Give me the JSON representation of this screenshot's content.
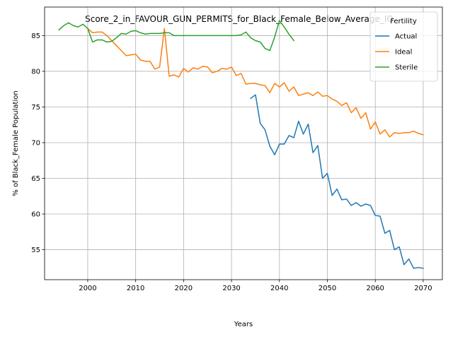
{
  "chart_data": {
    "type": "line",
    "title": "Score_2_in_FAVOUR_GUN_PERMITS_for_Black_Female_Below_Average_IQ",
    "xlabel": "Years",
    "ylabel": "% of Black_Female Population",
    "xlim": [
      1991,
      2074
    ],
    "ylim": [
      50.8,
      89.0
    ],
    "xticks": [
      2000,
      2010,
      2020,
      2030,
      2040,
      2050,
      2060,
      2070
    ],
    "yticks": [
      55,
      60,
      65,
      70,
      75,
      80,
      85
    ],
    "grid": true,
    "legend": {
      "title": "Fertility",
      "position": "top-right"
    },
    "series": [
      {
        "name": "Actual",
        "color": "#1f77b4",
        "x": [
          2034,
          2035,
          2036,
          2037,
          2038,
          2039,
          2040,
          2041,
          2042,
          2043,
          2044,
          2045,
          2046,
          2047,
          2048,
          2049,
          2050,
          2051,
          2052,
          2053,
          2054,
          2055,
          2056,
          2057,
          2058,
          2059,
          2060,
          2061,
          2062,
          2063,
          2064,
          2065,
          2066,
          2067,
          2068,
          2069,
          2070
        ],
        "y": [
          76.2,
          76.7,
          72.7,
          71.8,
          69.5,
          68.3,
          69.8,
          69.8,
          71.0,
          70.7,
          73.0,
          71.2,
          72.6,
          68.6,
          69.6,
          65.0,
          65.7,
          62.6,
          63.5,
          62.0,
          62.1,
          61.2,
          61.6,
          61.1,
          61.4,
          61.2,
          59.8,
          59.7,
          57.3,
          57.7,
          55.0,
          55.4,
          52.9,
          53.7,
          52.4,
          52.5,
          52.4
        ]
      },
      {
        "name": "Ideal",
        "color": "#ff7f0e",
        "x": [
          2000,
          2001,
          2002,
          2003,
          2004,
          2005,
          2006,
          2007,
          2008,
          2009,
          2010,
          2011,
          2012,
          2013,
          2014,
          2015,
          2016,
          2017,
          2018,
          2019,
          2020,
          2021,
          2022,
          2023,
          2024,
          2025,
          2026,
          2027,
          2028,
          2029,
          2030,
          2031,
          2032,
          2033,
          2034,
          2035,
          2036,
          2037,
          2038,
          2039,
          2040,
          2041,
          2042,
          2043,
          2044,
          2045,
          2046,
          2047,
          2048,
          2049,
          2050,
          2051,
          2052,
          2053,
          2054,
          2055,
          2056,
          2057,
          2058,
          2059,
          2060,
          2061,
          2062,
          2063,
          2064,
          2065,
          2066,
          2067,
          2068,
          2069,
          2070
        ],
        "y": [
          86.0,
          85.4,
          85.5,
          85.5,
          85.0,
          84.3,
          83.6,
          82.9,
          82.2,
          82.3,
          82.4,
          81.6,
          81.4,
          81.4,
          80.3,
          80.6,
          86.0,
          79.3,
          79.5,
          79.2,
          80.4,
          79.9,
          80.5,
          80.3,
          80.7,
          80.6,
          79.8,
          80.0,
          80.4,
          80.3,
          80.6,
          79.4,
          79.7,
          78.2,
          78.3,
          78.3,
          78.1,
          78.0,
          77.0,
          78.3,
          77.8,
          78.4,
          77.2,
          77.8,
          76.6,
          76.8,
          77.0,
          76.6,
          77.1,
          76.5,
          76.6,
          76.1,
          75.8,
          75.2,
          75.6,
          74.2,
          74.9,
          73.4,
          74.2,
          71.9,
          72.9,
          71.2,
          71.8,
          70.8,
          71.4,
          71.3,
          71.4,
          71.4,
          71.6,
          71.3,
          71.1
        ]
      },
      {
        "name": "Sterile",
        "color": "#2ca02c",
        "x": [
          1994,
          1995,
          1996,
          1997,
          1998,
          1999,
          2000,
          2001,
          2002,
          2003,
          2004,
          2005,
          2006,
          2007,
          2008,
          2009,
          2010,
          2011,
          2012,
          2013,
          2014,
          2015,
          2016,
          2017,
          2018,
          2019,
          2020,
          2021,
          2022,
          2023,
          2024,
          2025,
          2026,
          2027,
          2028,
          2029,
          2030,
          2031,
          2032,
          2033,
          2034,
          2035,
          2036,
          2037,
          2038,
          2039,
          2040,
          2041,
          2042,
          2043
        ],
        "y": [
          85.8,
          86.4,
          86.8,
          86.4,
          86.2,
          86.6,
          86.0,
          84.1,
          84.4,
          84.4,
          84.1,
          84.2,
          84.7,
          85.3,
          85.2,
          85.6,
          85.7,
          85.4,
          85.2,
          85.3,
          85.3,
          85.3,
          85.4,
          85.4,
          85.0,
          85.0,
          85.0,
          85.0,
          85.0,
          85.0,
          85.0,
          85.0,
          85.0,
          85.0,
          85.0,
          85.0,
          85.0,
          85.0,
          85.1,
          85.5,
          84.7,
          84.3,
          84.1,
          83.2,
          82.9,
          84.8,
          87.1,
          86.2,
          85.2,
          84.3
        ]
      }
    ]
  }
}
